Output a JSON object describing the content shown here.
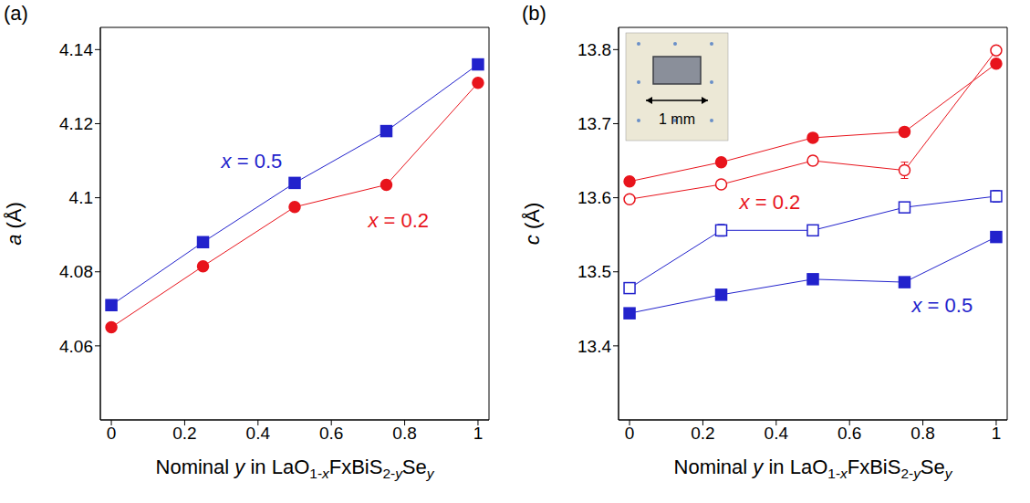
{
  "chart_data": [
    {
      "type": "line",
      "title": "(a)",
      "x_label": "Nominal y in LaO1-xFxBiS2-ySey",
      "y_label": "a (Å)",
      "xlim": [
        -0.03,
        1.03
      ],
      "xticks": [
        0,
        0.2,
        0.4,
        0.6,
        0.8,
        1
      ],
      "ylim": [
        4.04,
        4.146
      ],
      "yticks": [
        4.06,
        4.08,
        4.1,
        4.12,
        4.14
      ],
      "grid": false,
      "x": [
        0,
        0.25,
        0.5,
        0.75,
        1
      ],
      "series": [
        {
          "color": "#2222cc",
          "marker": "square",
          "line_style": "solid",
          "values": [
            4.071,
            4.088,
            4.104,
            4.118,
            4.136
          ]
        },
        {
          "color": "#e8141c",
          "marker": "circle",
          "line_style": "solid",
          "values": [
            4.065,
            4.0815,
            4.0975,
            4.1035,
            4.131
          ]
        }
      ],
      "annotations": [
        {
          "text": "x = 0.5",
          "x": 0.3,
          "y": 4.108,
          "color": "#2222cc"
        },
        {
          "text": "x = 0.2",
          "x": 0.7,
          "y": 4.092,
          "color": "#e8141c"
        }
      ]
    },
    {
      "type": "line",
      "title": "(b)",
      "x_label": "Nominal y in LaO1-xFxBiS2-ySey",
      "y_label": "c (Å)",
      "xlim": [
        -0.03,
        1.03
      ],
      "xticks": [
        0,
        0.2,
        0.4,
        0.6,
        0.8,
        1
      ],
      "ylim": [
        13.3,
        13.83
      ],
      "yticks": [
        13.4,
        13.5,
        13.6,
        13.7,
        13.8
      ],
      "grid": false,
      "x": [
        0,
        0.25,
        0.5,
        0.75,
        1
      ],
      "series": [
        {
          "color": "#e8141c",
          "marker": "circle",
          "line_style": "solid",
          "values": [
            13.622,
            13.648,
            13.681,
            13.689,
            13.781
          ]
        },
        {
          "color": "#e8141c",
          "marker": "open_circle",
          "line_style": "solid",
          "values": [
            13.598,
            13.618,
            13.65,
            13.637,
            13.799
          ],
          "errors": [
            0.004,
            0.004,
            0.006,
            0.011,
            0.005
          ]
        },
        {
          "color": "#2222cc",
          "marker": "open_square",
          "line_style": "solid",
          "values": [
            13.478,
            13.556,
            13.556,
            13.587,
            13.602
          ],
          "errors": [
            0.007,
            0.008,
            0.006,
            0.007,
            0.008
          ]
        },
        {
          "color": "#2222cc",
          "marker": "square",
          "line_style": "solid",
          "values": [
            13.444,
            13.469,
            13.49,
            13.486,
            13.547
          ]
        }
      ],
      "annotations": [
        {
          "text": "x = 0.2",
          "x": 0.3,
          "y": 13.585,
          "color": "#e8141c"
        },
        {
          "text": "x = 0.5",
          "x": 0.77,
          "y": 13.445,
          "color": "#2222cc"
        }
      ],
      "inset": {
        "text": "1 mm"
      }
    }
  ]
}
